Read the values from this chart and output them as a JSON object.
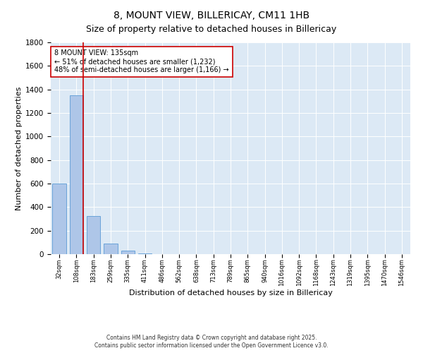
{
  "title": "8, MOUNT VIEW, BILLERICAY, CM11 1HB",
  "subtitle": "Size of property relative to detached houses in Billericay",
  "xlabel": "Distribution of detached houses by size in Billericay",
  "ylabel": "Number of detached properties",
  "categories": [
    "32sqm",
    "108sqm",
    "183sqm",
    "259sqm",
    "335sqm",
    "411sqm",
    "486sqm",
    "562sqm",
    "638sqm",
    "713sqm",
    "789sqm",
    "865sqm",
    "940sqm",
    "1016sqm",
    "1092sqm",
    "1168sqm",
    "1243sqm",
    "1319sqm",
    "1395sqm",
    "1470sqm",
    "1546sqm"
  ],
  "values": [
    600,
    1350,
    325,
    90,
    30,
    8,
    2,
    0,
    0,
    0,
    0,
    0,
    0,
    0,
    0,
    0,
    0,
    0,
    0,
    0,
    0
  ],
  "bar_color": "#aec6e8",
  "bar_edge_color": "#5b9bd5",
  "vline_color": "#cc0000",
  "ylim": [
    0,
    1800
  ],
  "yticks": [
    0,
    200,
    400,
    600,
    800,
    1000,
    1200,
    1400,
    1600,
    1800
  ],
  "bg_color": "#dce9f5",
  "annotation_text": "8 MOUNT VIEW: 135sqm\n← 51% of detached houses are smaller (1,232)\n48% of semi-detached houses are larger (1,166) →",
  "annotation_box_color": "#ffffff",
  "annotation_box_edge": "#cc0000",
  "footer": "Contains HM Land Registry data © Crown copyright and database right 2025.\nContains public sector information licensed under the Open Government Licence v3.0.",
  "title_fontsize": 10,
  "subtitle_fontsize": 9,
  "annotation_fontsize": 7,
  "xlabel_fontsize": 8,
  "ylabel_fontsize": 8,
  "footer_fontsize": 5.5,
  "ytick_fontsize": 7.5,
  "xtick_fontsize": 6
}
